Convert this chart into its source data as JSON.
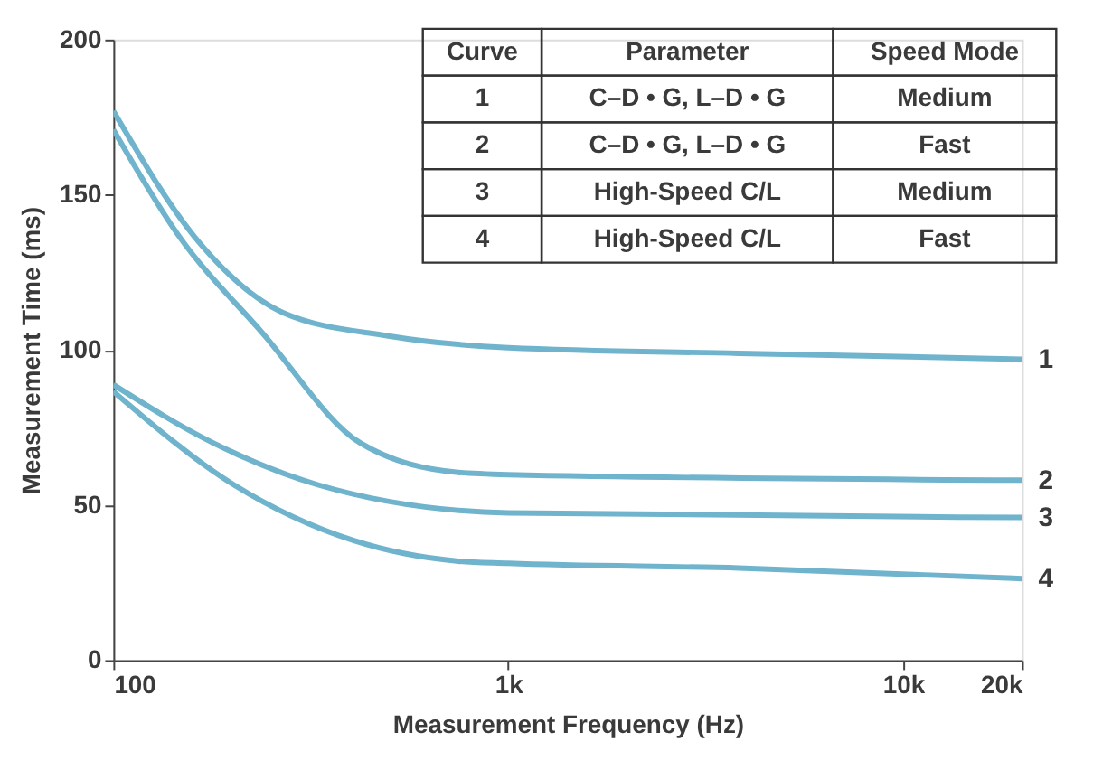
{
  "chart_data": {
    "type": "line",
    "xlabel": "Measurement Frequency (Hz)",
    "ylabel": "Measurement Time (ms)",
    "log": "x",
    "xlim": [
      100,
      20000
    ],
    "ylim": [
      0,
      200
    ],
    "xticks": [
      100,
      {
        "value": 1000,
        "label": "1k"
      },
      {
        "value": 10000,
        "label": "10k"
      },
      {
        "value": 20000,
        "label": "20k"
      }
    ],
    "yticks": [
      0,
      50,
      100,
      150,
      200
    ],
    "grid": false,
    "legend": false,
    "marker": "none",
    "line_style": "solid",
    "series": [
      {
        "name": "1",
        "color": "#6fb4cc",
        "x": [
          100,
          165,
          269,
          497,
          1000,
          3837,
          20000
        ],
        "values": [
          177,
          134.6,
          112,
          104.5,
          100.7,
          98.9,
          97
        ]
      },
      {
        "name": "2",
        "color": "#6fb4cc",
        "x": [
          100,
          146,
          238,
          422,
          748,
          1000,
          20000
        ],
        "values": [
          171,
          137,
          105.6,
          70,
          60.5,
          59.8,
          58
        ]
      },
      {
        "name": "3",
        "color": "#6fb4cc",
        "x": [
          100,
          179,
          330,
          1000,
          20000
        ],
        "values": [
          88.8,
          70,
          56.5,
          47.5,
          46
        ]
      },
      {
        "name": "4",
        "color": "#6fb4cc",
        "x": [
          100,
          202,
          405,
          748,
          1000,
          3837,
          20000
        ],
        "values": [
          86.6,
          56.5,
          38.6,
          31.9,
          31.2,
          29.7,
          26.3
        ]
      }
    ],
    "annotations": [
      "Curve",
      "Parameter",
      "Speed Mode",
      "1",
      "C–D • G, L–D • G",
      "Medium",
      "2",
      "C–D • G, L–D • G",
      "Fast",
      "3",
      "High-Speed C/L",
      "Medium",
      "4",
      "High-Speed C/L",
      "Fast"
    ]
  }
}
